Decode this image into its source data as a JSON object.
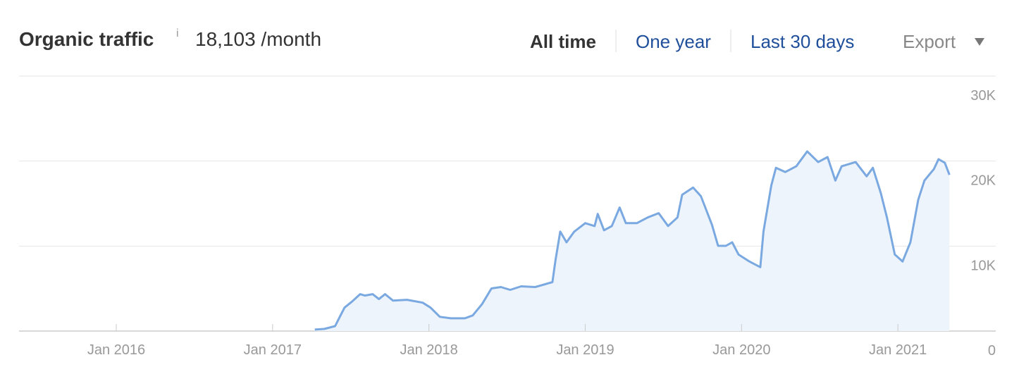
{
  "header": {
    "title": "Organic traffic",
    "info_icon": "i",
    "total": "18,103 /month",
    "periods": [
      "All time",
      "One year",
      "Last 30 days"
    ],
    "export": "Export"
  },
  "chart_data": {
    "type": "area",
    "color": "#7aa8e0",
    "fill": "#eef4fc",
    "grid": true,
    "x": [
      2017.27,
      2017.33,
      2017.4,
      2017.43,
      2017.46,
      2017.51,
      2017.56,
      2017.59,
      2017.64,
      2017.68,
      2017.72,
      2017.77,
      2017.86,
      2017.96,
      2018.01,
      2018.07,
      2018.14,
      2018.23,
      2018.28,
      2018.34,
      2018.4,
      2018.46,
      2018.52,
      2018.59,
      2018.68,
      2018.79,
      2018.81,
      2018.84,
      2018.88,
      2018.93,
      2019.0,
      2019.06,
      2019.08,
      2019.12,
      2019.17,
      2019.22,
      2019.26,
      2019.33,
      2019.4,
      2019.47,
      2019.53,
      2019.59,
      2019.62,
      2019.69,
      2019.74,
      2019.81,
      2019.85,
      2019.9,
      2019.94,
      2019.98,
      2020.05,
      2020.12,
      2020.14,
      2020.19,
      2020.22,
      2020.28,
      2020.35,
      2020.42,
      2020.49,
      2020.55,
      2020.6,
      2020.64,
      2020.73,
      2020.8,
      2020.84,
      2020.89,
      2020.93,
      2020.98,
      2021.03,
      2021.08,
      2021.13,
      2021.17,
      2021.23,
      2021.26,
      2021.3,
      2021.33
    ],
    "values": [
      170,
      250,
      580,
      1670,
      2760,
      3500,
      4340,
      4180,
      4340,
      3760,
      4340,
      3590,
      3680,
      3340,
      2760,
      1670,
      1500,
      1500,
      1840,
      3170,
      5010,
      5180,
      4850,
      5260,
      5180,
      5760,
      8350,
      11700,
      10440,
      11700,
      12700,
      12360,
      13780,
      11860,
      12360,
      14540,
      12700,
      12700,
      13370,
      13870,
      12360,
      13370,
      16040,
      16880,
      15870,
      12530,
      10030,
      10030,
      10440,
      9020,
      8190,
      7520,
      11700,
      17130,
      19210,
      18710,
      19380,
      21140,
      19880,
      20470,
      17710,
      19380,
      19880,
      18210,
      19210,
      16290,
      13370,
      9020,
      8190,
      10440,
      15450,
      17710,
      19050,
      20220,
      19800,
      18380
    ],
    "xlim": [
      2015.378,
      2021.626
    ],
    "ylim": [
      0,
      30000
    ],
    "xticks": [
      {
        "value": 2016,
        "label": "Jan 2016"
      },
      {
        "value": 2017,
        "label": "Jan 2017"
      },
      {
        "value": 2018,
        "label": "Jan 2018"
      },
      {
        "value": 2019,
        "label": "Jan 2019"
      },
      {
        "value": 2020,
        "label": "Jan 2020"
      },
      {
        "value": 2021,
        "label": "Jan 2021"
      }
    ],
    "yticks": [
      0,
      {
        "value": 10000,
        "label": "10K"
      },
      {
        "value": 20000,
        "label": "20K"
      },
      {
        "value": 30000,
        "label": "30K"
      }
    ]
  }
}
